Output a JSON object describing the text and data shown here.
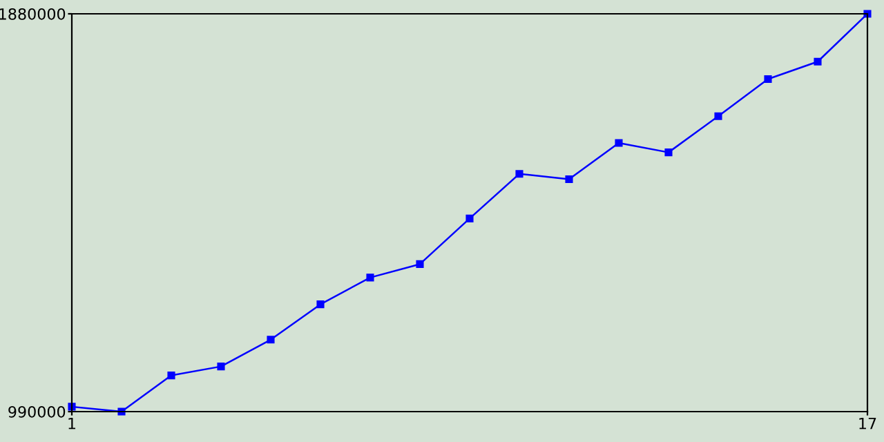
{
  "chart_data": {
    "type": "line",
    "x": [
      1,
      2,
      3,
      4,
      5,
      6,
      7,
      8,
      9,
      10,
      11,
      12,
      13,
      14,
      15,
      16,
      17
    ],
    "series": [
      {
        "color": "#0000ff",
        "values": [
          1001000,
          990000,
          1071000,
          1091000,
          1151000,
          1230000,
          1290000,
          1320000,
          1422000,
          1522000,
          1510000,
          1591000,
          1570000,
          1651000,
          1734000,
          1773000,
          1880000
        ]
      }
    ],
    "xlim": [
      1,
      17
    ],
    "xticks": [
      1,
      17
    ],
    "ylim": [
      990000,
      1880000
    ],
    "yticks": [
      990000,
      1880000
    ],
    "marker": "square",
    "line_style": "solid",
    "grid": false,
    "legend": false
  }
}
